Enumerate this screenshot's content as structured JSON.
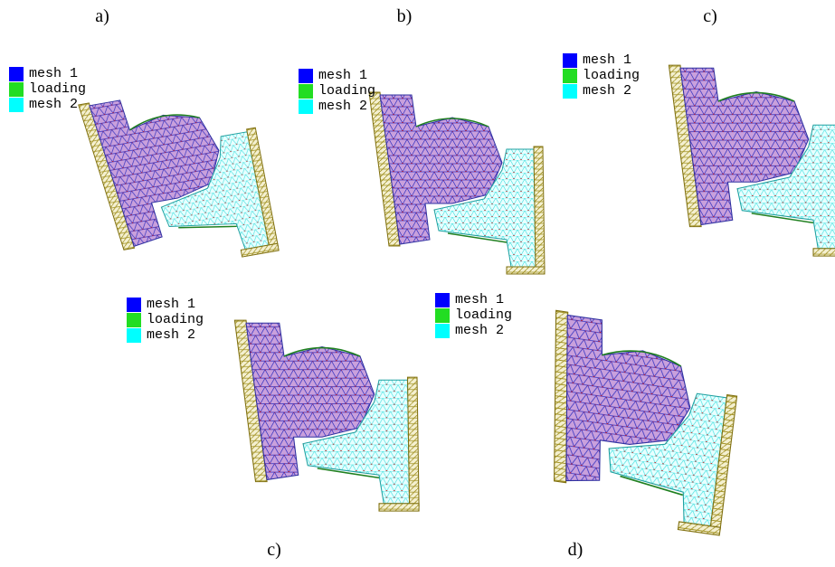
{
  "panels": [
    {
      "label": "a)",
      "legend": [
        "mesh 1",
        "loading",
        "mesh 2"
      ]
    },
    {
      "label": "b)",
      "legend": [
        "mesh 1",
        "loading",
        "mesh 2"
      ]
    },
    {
      "label": "c)",
      "legend": [
        "mesh 1",
        "loading",
        "mesh 2"
      ]
    },
    {
      "label": "c)",
      "legend": [
        "mesh 1",
        "loading",
        "mesh 2"
      ]
    },
    {
      "label": "d)",
      "legend": [
        "mesh 1",
        "loading",
        "mesh 2"
      ]
    }
  ]
}
